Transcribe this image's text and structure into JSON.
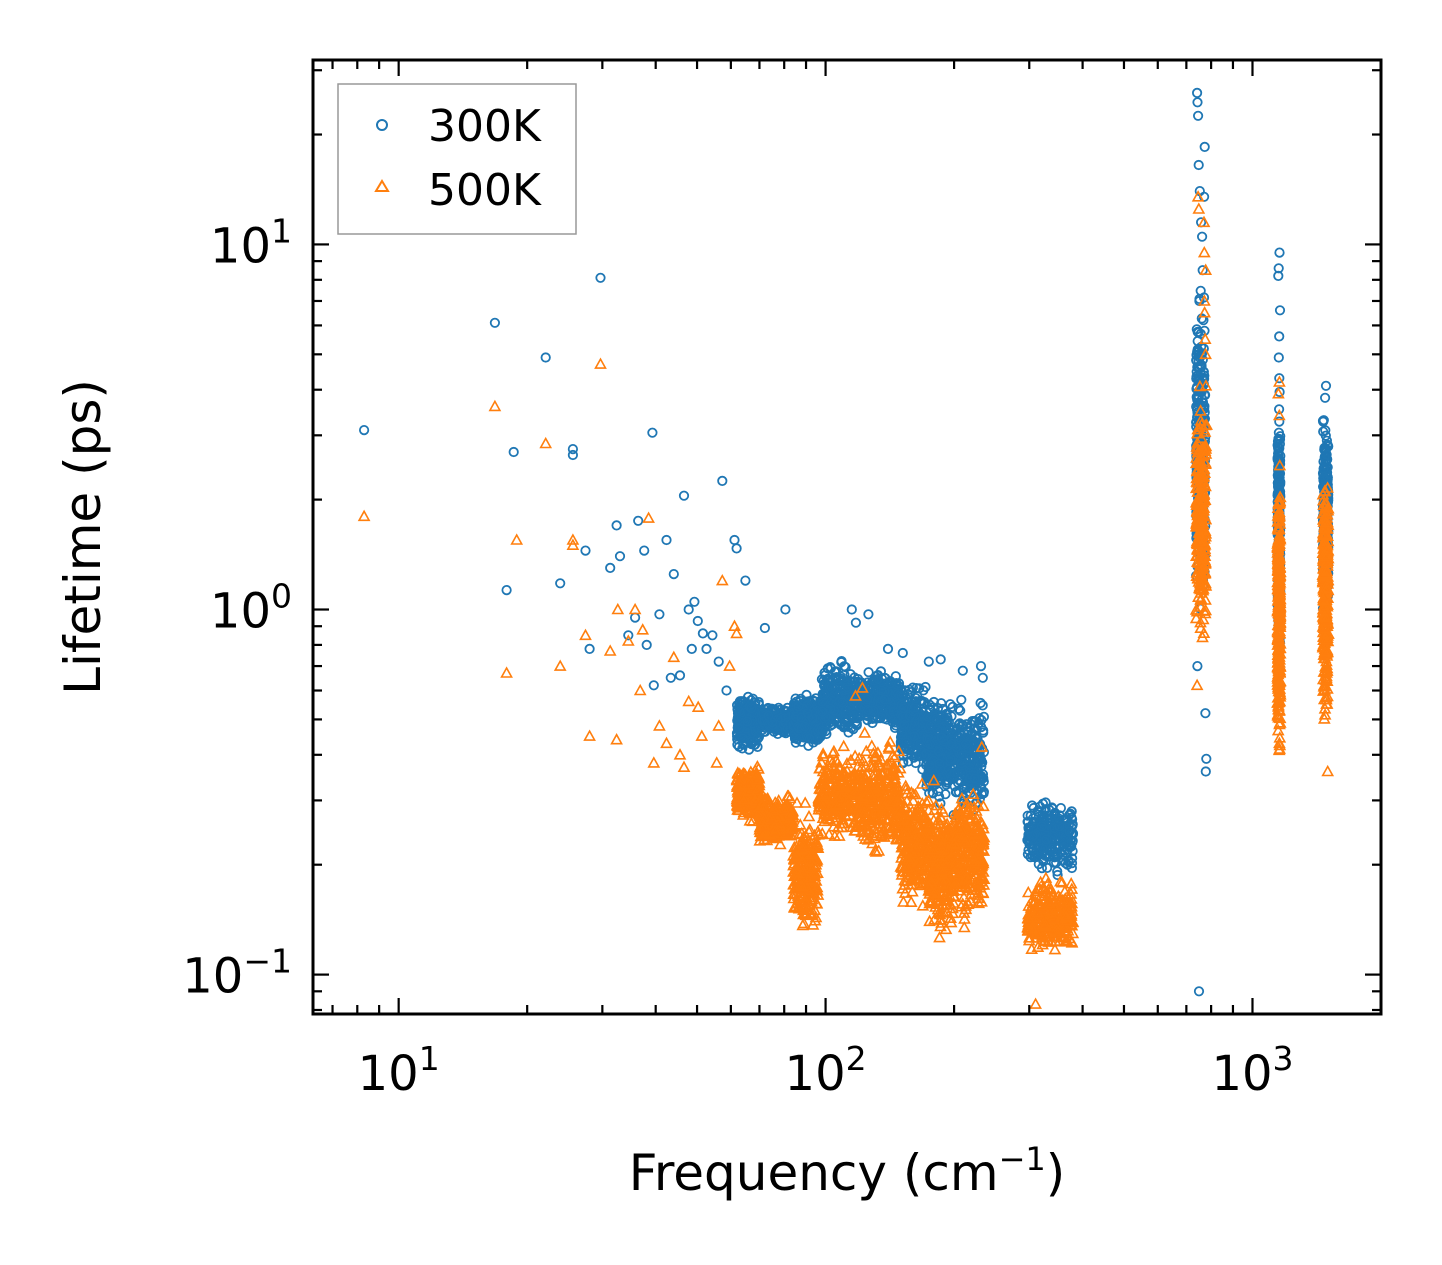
{
  "chart_data": {
    "type": "scatter",
    "xscale": "log",
    "yscale": "log",
    "xlim": [
      6.3,
      2000
    ],
    "ylim": [
      0.078,
      32
    ],
    "xlabel": "Frequency (cm",
    "xlabel_sup": "−1",
    "xlabel_suffix": ")",
    "ylabel": "Lifetime (ps)",
    "x_ticks": [
      {
        "value": 10,
        "base": "10",
        "exp": "1"
      },
      {
        "value": 100,
        "base": "10",
        "exp": "2"
      },
      {
        "value": 1000,
        "base": "10",
        "exp": "3"
      }
    ],
    "y_ticks": [
      {
        "value": 0.1,
        "base": "10",
        "exp": "−1"
      },
      {
        "value": 1,
        "base": "10",
        "exp": "0"
      },
      {
        "value": 10,
        "base": "10",
        "exp": "1"
      }
    ],
    "legend_position": "top-left",
    "series": [
      {
        "name": "300K",
        "marker": "circle",
        "color": "#1f77b4",
        "points": [
          [
            8.3,
            3.1
          ],
          [
            16.8,
            6.1
          ],
          [
            18.6,
            2.7
          ],
          [
            17.9,
            1.13
          ],
          [
            22.1,
            4.9
          ],
          [
            25.6,
            2.75
          ],
          [
            25.6,
            2.65
          ],
          [
            23.9,
            1.18
          ],
          [
            27.4,
            1.45
          ],
          [
            28.0,
            0.78
          ],
          [
            29.7,
            8.1
          ],
          [
            31.3,
            1.3
          ],
          [
            32.4,
            1.7
          ],
          [
            33.0,
            1.4
          ],
          [
            34.5,
            0.85
          ],
          [
            36.4,
            1.75
          ],
          [
            35.8,
            0.95
          ],
          [
            37.6,
            1.45
          ],
          [
            38.1,
            0.8
          ],
          [
            39.3,
            3.05
          ],
          [
            39.6,
            0.62
          ],
          [
            40.8,
            0.97
          ],
          [
            42.4,
            1.55
          ],
          [
            43.4,
            0.65
          ],
          [
            44.1,
            1.25
          ],
          [
            45.6,
            0.66
          ],
          [
            46.6,
            2.05
          ],
          [
            47.8,
            1.0
          ],
          [
            49.3,
            1.05
          ],
          [
            48.6,
            0.78
          ],
          [
            50.2,
            0.93
          ],
          [
            51.6,
            0.86
          ],
          [
            52.6,
            0.78
          ],
          [
            54.3,
            0.85
          ],
          [
            56.2,
            0.72
          ],
          [
            57.3,
            2.25
          ],
          [
            58.6,
            0.6
          ],
          [
            61.2,
            1.55
          ],
          [
            61.9,
            1.47
          ],
          [
            64.9,
            1.2
          ],
          [
            72.1,
            0.89
          ],
          [
            80.5,
            1.0
          ],
          [
            115.2,
            1.0
          ],
          [
            117.8,
            0.92
          ],
          [
            126.0,
            0.97
          ],
          [
            140.0,
            0.78
          ],
          [
            151.7,
            0.76
          ],
          [
            174.5,
            0.72
          ],
          [
            186.1,
            0.73
          ],
          [
            209.6,
            0.68
          ],
          [
            231.2,
            0.7
          ],
          [
            233.5,
            0.65
          ],
          [
            741.7,
            26.0
          ],
          [
            743.3,
            24.5
          ],
          [
            745.6,
            22.5
          ],
          [
            748.2,
            16.5
          ],
          [
            752.7,
            14.0
          ],
          [
            773.0,
            18.5
          ],
          [
            770.5,
            13.5
          ],
          [
            758.1,
            11.5
          ],
          [
            762.0,
            10.5
          ],
          [
            764.5,
            8.5
          ],
          [
            751.0,
            7.0
          ],
          [
            767.5,
            6.2
          ],
          [
            772.0,
            5.8
          ],
          [
            743.1,
            0.7
          ],
          [
            749.2,
            0.09
          ],
          [
            775.8,
            0.52
          ],
          [
            779.6,
            0.39
          ],
          [
            777.2,
            0.36
          ],
          [
            1157.0,
            9.5
          ],
          [
            1151.6,
            8.6
          ],
          [
            1149.4,
            8.2
          ],
          [
            1160.1,
            6.6
          ],
          [
            1155.2,
            5.6
          ],
          [
            1152.5,
            4.9
          ],
          [
            1155.8,
            4.3
          ],
          [
            1487.0,
            4.1
          ],
          [
            1479.3,
            3.8
          ],
          [
            1469.1,
            3.3
          ],
          [
            1494.2,
            2.9
          ],
          [
            1501.5,
            2.3
          ]
        ],
        "clusters": [
          [
            [
              62,
              0.4
            ],
            [
              70,
              0.6
            ]
          ],
          [
            [
              70,
              0.45
            ],
            [
              84,
              0.55
            ]
          ],
          [
            [
              84,
              0.4
            ],
            [
              98,
              0.6
            ]
          ],
          [
            [
              98,
              0.42
            ],
            [
              120,
              0.75
            ]
          ],
          [
            [
              120,
              0.45
            ],
            [
              150,
              0.72
            ]
          ],
          [
            [
              150,
              0.35
            ],
            [
              172,
              0.65
            ]
          ],
          [
            [
              172,
              0.28
            ],
            [
              195,
              0.62
            ]
          ],
          [
            [
              195,
              0.25
            ],
            [
              235,
              0.6
            ]
          ],
          [
            [
              297,
              0.18
            ],
            [
              380,
              0.32
            ]
          ],
          [
            [
              738,
              0.8
            ],
            [
              775,
              9.0
            ]
          ],
          [
            [
              1145,
              0.6
            ],
            [
              1162,
              4.5
            ]
          ],
          [
            [
              1462,
              0.9
            ],
            [
              1505,
              3.6
            ]
          ]
        ]
      },
      {
        "name": "500K",
        "marker": "triangle",
        "color": "#ff7f0e",
        "points": [
          [
            8.3,
            1.8
          ],
          [
            16.8,
            3.6
          ],
          [
            17.9,
            0.67
          ],
          [
            18.9,
            1.55
          ],
          [
            22.1,
            2.85
          ],
          [
            23.9,
            0.7
          ],
          [
            25.6,
            1.55
          ],
          [
            25.6,
            1.5
          ],
          [
            27.4,
            0.85
          ],
          [
            28.0,
            0.45
          ],
          [
            29.7,
            4.7
          ],
          [
            31.3,
            0.77
          ],
          [
            32.4,
            0.44
          ],
          [
            32.6,
            1.0
          ],
          [
            34.5,
            0.82
          ],
          [
            35.8,
            1.0
          ],
          [
            36.8,
            0.6
          ],
          [
            37.3,
            0.88
          ],
          [
            38.5,
            1.78
          ],
          [
            39.6,
            0.38
          ],
          [
            40.8,
            0.48
          ],
          [
            42.4,
            0.43
          ],
          [
            44.1,
            0.74
          ],
          [
            45.6,
            0.4
          ],
          [
            46.6,
            0.37
          ],
          [
            47.8,
            0.56
          ],
          [
            50.3,
            0.54
          ],
          [
            51.3,
            0.45
          ],
          [
            55.6,
            0.38
          ],
          [
            56.2,
            0.48
          ],
          [
            57.3,
            1.2
          ],
          [
            59.6,
            0.7
          ],
          [
            61.2,
            0.9
          ],
          [
            61.9,
            0.86
          ],
          [
            117.5,
            0.58
          ],
          [
            122.0,
            0.61
          ],
          [
            179.3,
            0.34
          ],
          [
            232.3,
            0.42
          ],
          [
            310.4,
            0.083
          ],
          [
            745.6,
            13.5
          ],
          [
            748.5,
            12.5
          ],
          [
            770.0,
            11.5
          ],
          [
            771.0,
            9.5
          ],
          [
            776.8,
            8.5
          ],
          [
            771.5,
            7.0
          ],
          [
            772.3,
            6.5
          ],
          [
            774.8,
            5.5
          ],
          [
            776.5,
            5.0
          ],
          [
            777.8,
            4.1
          ],
          [
            780.6,
            3.2
          ],
          [
            741.7,
            0.62
          ],
          [
            1156.3,
            4.2
          ],
          [
            1150.2,
            3.9
          ],
          [
            1155.8,
            3.4
          ],
          [
            1500.6,
            0.36
          ]
        ],
        "clusters": [
          [
            [
              62,
              0.26
            ],
            [
              70,
              0.38
            ]
          ],
          [
            [
              70,
              0.22
            ],
            [
              84,
              0.32
            ]
          ],
          [
            [
              84,
              0.12
            ],
            [
              96,
              0.3
            ]
          ],
          [
            [
              96,
              0.22
            ],
            [
              122,
              0.45
            ]
          ],
          [
            [
              122,
              0.2
            ],
            [
              150,
              0.48
            ]
          ],
          [
            [
              150,
              0.14
            ],
            [
              175,
              0.35
            ]
          ],
          [
            [
              175,
              0.12
            ],
            [
              200,
              0.32
            ]
          ],
          [
            [
              200,
              0.13
            ],
            [
              235,
              0.36
            ]
          ],
          [
            [
              297,
              0.11
            ],
            [
              380,
              0.19
            ]
          ],
          [
            [
              738,
              0.7
            ],
            [
              778,
              4.5
            ]
          ],
          [
            [
              1145,
              0.32
            ],
            [
              1162,
              3.0
            ]
          ],
          [
            [
              1462,
              0.42
            ],
            [
              1505,
              2.8
            ]
          ]
        ]
      }
    ]
  }
}
